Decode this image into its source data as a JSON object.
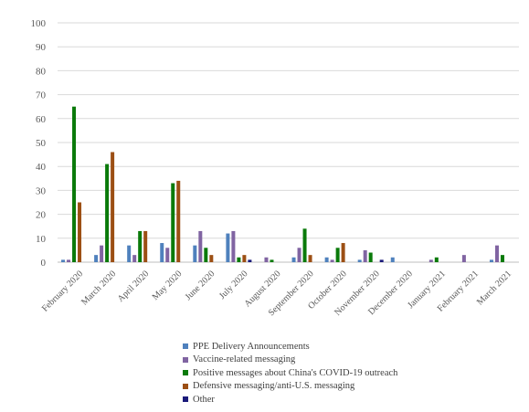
{
  "chart_data": {
    "type": "bar",
    "title": "",
    "xlabel": "",
    "ylabel": "",
    "ylim": [
      0,
      100
    ],
    "yticks": [
      0,
      10,
      20,
      30,
      40,
      50,
      60,
      70,
      80,
      90,
      100
    ],
    "grid": true,
    "legend_position": "bottom",
    "categories": [
      "February 2020",
      "March 2020",
      "April 2020",
      "May 2020",
      "June 2020",
      "July 2020",
      "August 2020",
      "September 2020",
      "October 2020",
      "November 2020",
      "December 2020",
      "January 2021",
      "February 2021",
      "March 2021"
    ],
    "series": [
      {
        "name": "PPE Delivery Announcements",
        "color": "#4f81bd",
        "values": [
          1,
          3,
          7,
          8,
          7,
          12,
          0,
          2,
          2,
          1,
          2,
          0,
          0,
          1
        ]
      },
      {
        "name": "Vaccine-related messaging",
        "color": "#8064a2",
        "values": [
          1,
          7,
          3,
          6,
          13,
          13,
          2,
          6,
          1,
          5,
          0,
          1,
          3,
          7
        ]
      },
      {
        "name": "Positive messages about China's COVID-19 outreach",
        "color": "#0a7a0a",
        "values": [
          65,
          41,
          13,
          33,
          6,
          2,
          1,
          14,
          6,
          4,
          0,
          2,
          0,
          3
        ]
      },
      {
        "name": "Defensive messaging/anti-U.S. messaging",
        "color": "#9c4f14",
        "values": [
          25,
          46,
          13,
          34,
          3,
          3,
          0,
          3,
          8,
          0,
          0,
          0,
          0,
          0
        ]
      },
      {
        "name": "Other",
        "color": "#1a1a7a",
        "values": [
          0,
          0,
          0,
          0,
          0,
          1,
          0,
          0,
          0,
          1,
          0,
          0,
          0,
          0
        ]
      }
    ]
  }
}
